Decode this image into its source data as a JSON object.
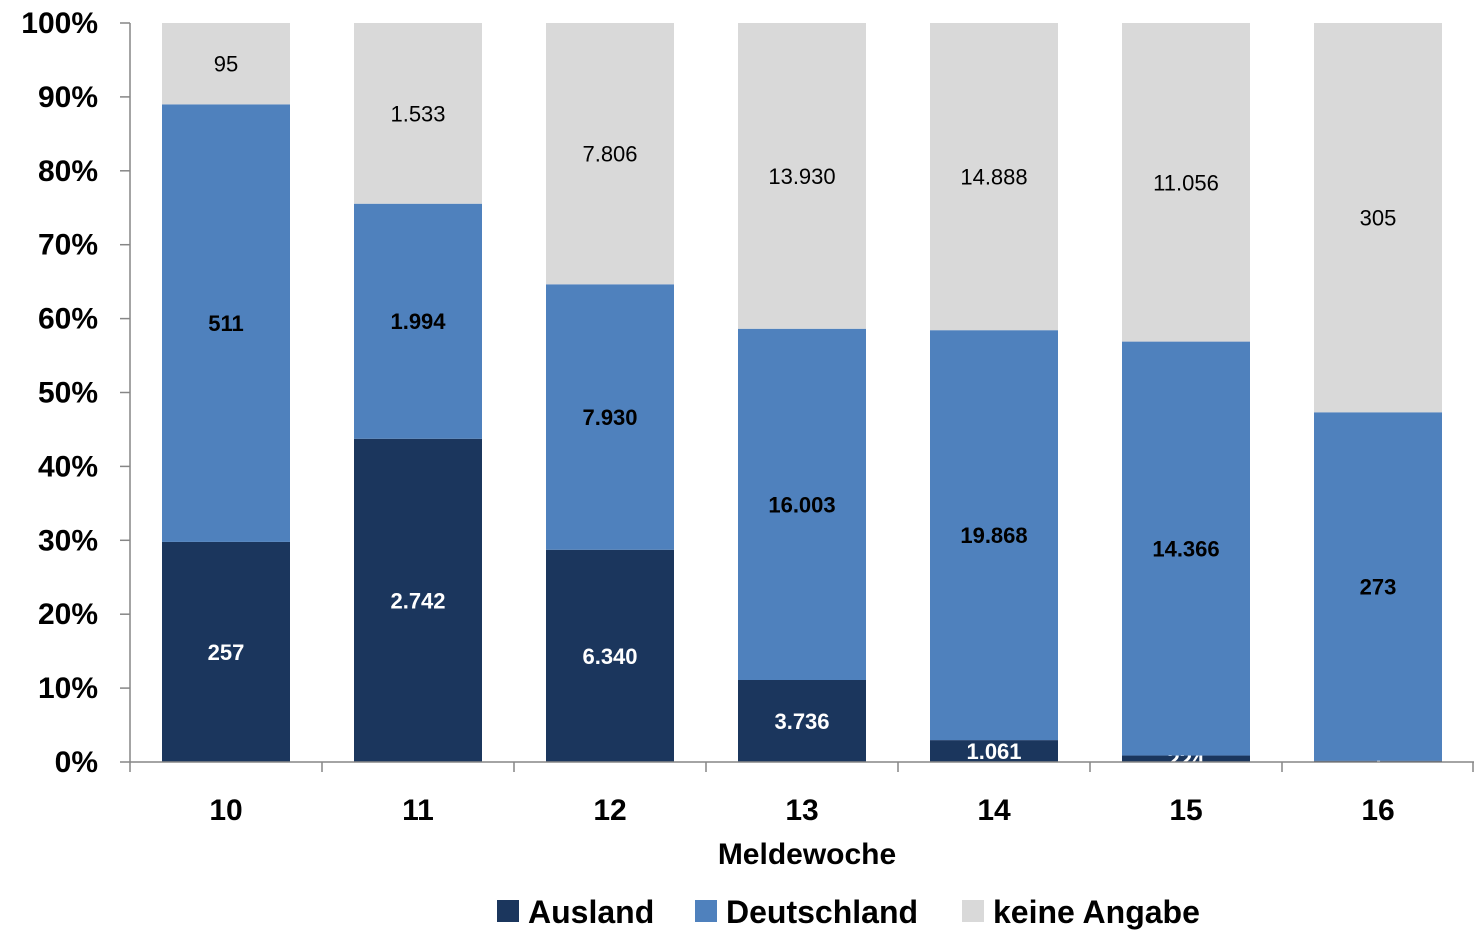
{
  "chart_data": {
    "type": "bar",
    "stacked": "percent",
    "title": "",
    "xlabel": "Meldewoche",
    "ylabel": "",
    "ylim": [
      0,
      100
    ],
    "yticks": [
      "0%",
      "10%",
      "20%",
      "30%",
      "40%",
      "50%",
      "60%",
      "70%",
      "80%",
      "90%",
      "100%"
    ],
    "categories": [
      "10",
      "11",
      "12",
      "13",
      "14",
      "15",
      "16"
    ],
    "series": [
      {
        "name": "Ausland",
        "color": "#1b365d",
        "label_color": "#ffffff",
        "label_bold": true,
        "values": [
          257,
          2742,
          6340,
          3736,
          1061,
          224,
          1
        ],
        "labels": [
          "257",
          "2.742",
          "6.340",
          "3.736",
          "1.061",
          "224",
          "1"
        ]
      },
      {
        "name": "Deutschland",
        "color": "#4f81bd",
        "label_color": "#000000",
        "label_bold": true,
        "values": [
          511,
          1994,
          7930,
          16003,
          19868,
          14366,
          273
        ],
        "labels": [
          "511",
          "1.994",
          "7.930",
          "16.003",
          "19.868",
          "14.366",
          "273"
        ]
      },
      {
        "name": "keine Angabe",
        "color": "#d9d9d9",
        "label_color": "#000000",
        "label_bold": false,
        "values": [
          95,
          1533,
          7806,
          13930,
          14888,
          11056,
          305
        ],
        "labels": [
          "95",
          "1.533",
          "7.806",
          "13.930",
          "14.888",
          "11.056",
          "305"
        ]
      }
    ],
    "legend_position": "bottom",
    "grid": false
  }
}
